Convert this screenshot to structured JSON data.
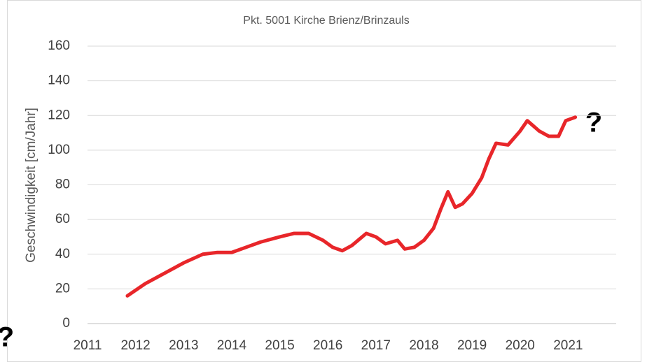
{
  "chart_data": {
    "type": "line",
    "title": "Pkt. 5001 Kirche Brienz/Brinzauls",
    "y_label": "Geschwindigkeit [cm/Jahr]",
    "annotations": [
      "?",
      "?"
    ],
    "series": [
      {
        "color": "#e8262a",
        "x": [
          2011.83,
          2012.2,
          2012.6,
          2013.0,
          2013.4,
          2013.7,
          2014.0,
          2014.3,
          2014.6,
          2015.0,
          2015.3,
          2015.6,
          2015.9,
          2016.1,
          2016.3,
          2016.5,
          2016.8,
          2017.0,
          2017.2,
          2017.45,
          2017.6,
          2017.8,
          2018.0,
          2018.2,
          2018.35,
          2018.5,
          2018.65,
          2018.8,
          2019.0,
          2019.2,
          2019.35,
          2019.5,
          2019.75,
          2020.0,
          2020.15,
          2020.4,
          2020.6,
          2020.8,
          2020.95,
          2021.15
        ],
        "values": [
          16,
          23,
          29,
          35,
          40,
          41,
          41,
          44,
          47,
          50,
          52,
          52,
          48,
          44,
          42,
          45,
          52,
          50,
          46,
          48,
          43,
          44,
          48,
          55,
          66,
          76,
          67,
          69,
          75,
          84,
          95,
          104,
          103,
          111,
          117,
          111,
          108,
          108,
          117,
          119
        ]
      }
    ],
    "xlim": [
      2011,
      2022
    ],
    "xticks": [
      2011,
      2012,
      2013,
      2014,
      2015,
      2016,
      2017,
      2018,
      2019,
      2020,
      2021
    ],
    "ylim": [
      0,
      160
    ],
    "yticks": [
      0,
      20,
      40,
      60,
      80,
      100,
      120,
      140,
      160
    ],
    "grid": true
  }
}
